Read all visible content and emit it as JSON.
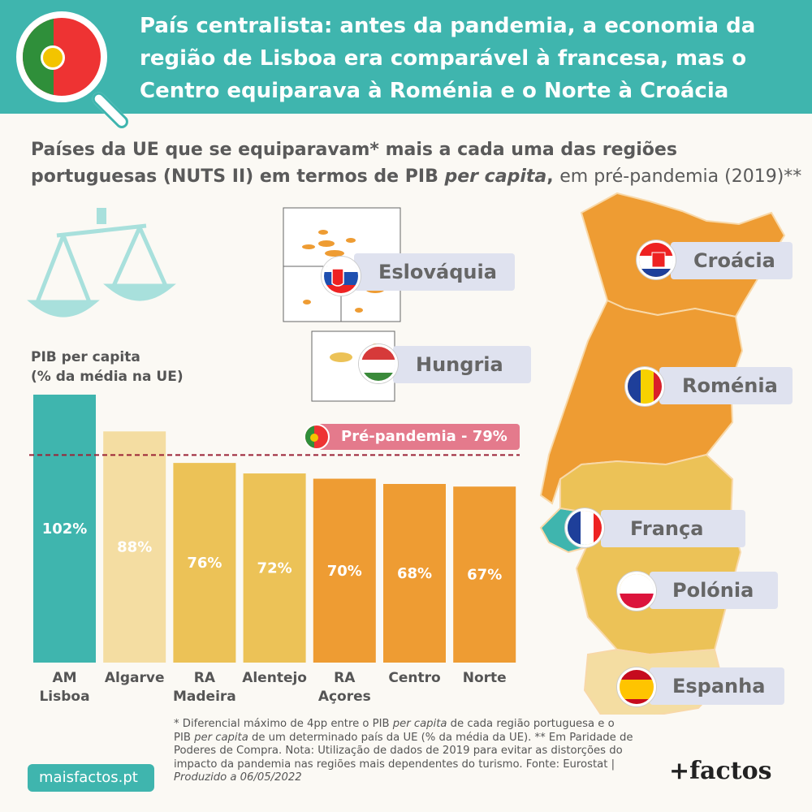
{
  "header": {
    "title": "País centralista: antes da pandemia, a economia da região de Lisboa era comparável à francesa, mas o Centro equiparava à Roménia e o Norte à Croácia"
  },
  "subtitle": {
    "part1": "Países da UE que se equiparavam* mais a cada uma das regiões portuguesas (NUTS II) em termos de PIB ",
    "part_italic": "per capita",
    "part2": ", ",
    "part_light": "em pré-pandemia (2019)**"
  },
  "axis_title": {
    "line1": "PIB per capita",
    "line2": "(% da média na UE)"
  },
  "chart_data": {
    "type": "bar",
    "categories": [
      "AM Lisboa",
      "Algarve",
      "RA Madeira",
      "Alentejo",
      "RA Açores",
      "Centro",
      "Norte"
    ],
    "category_lines": [
      [
        "AM",
        "Lisboa"
      ],
      [
        "Algarve"
      ],
      [
        "RA",
        "Madeira"
      ],
      [
        "Alentejo"
      ],
      [
        "RA",
        "Açores"
      ],
      [
        "Centro"
      ],
      [
        "Norte"
      ]
    ],
    "values": [
      102,
      88,
      76,
      72,
      70,
      68,
      67
    ],
    "value_labels": [
      "102%",
      "88%",
      "76%",
      "72%",
      "70%",
      "68%",
      "67%"
    ],
    "colors": [
      "#3fb5ae",
      "#f4dda2",
      "#ecc257",
      "#ecc257",
      "#ee9c33",
      "#ee9c33",
      "#ee9c33"
    ],
    "reference_line": {
      "value": 79,
      "label": "Pré-pandemia - 79%",
      "color": "#9b2336"
    },
    "ylim": [
      0,
      102
    ]
  },
  "matches": [
    {
      "country": "Eslováquia",
      "flag": "slovakia-flag"
    },
    {
      "country": "Hungria",
      "flag": "hungary-flag"
    },
    {
      "country": "Croácia",
      "flag": "croatia-flag"
    },
    {
      "country": "Roménia",
      "flag": "romania-flag"
    },
    {
      "country": "França",
      "flag": "france-flag"
    },
    {
      "country": "Polónia",
      "flag": "poland-flag"
    },
    {
      "country": "Espanha",
      "flag": "spain-flag"
    }
  ],
  "footnote": {
    "t1": "* Diferencial máximo de 4pp entre o PIB ",
    "i1": "per capita",
    "t2": " de cada região portuguesa e o PIB ",
    "i2": "per capita",
    "t3": " de um determinado país da UE (% da média da UE). ** Em Paridade de Poderes de Compra. Nota: Utilização de dados de 2019 para evitar as distorções do impacto da pandemia nas regiões mais dependentes do turismo. Fonte: Eurostat | ",
    "i3": "Produzido a 06/05/2022"
  },
  "site": "maisfactos.pt",
  "brand": "+factos",
  "colors": {
    "teal": "#3fb5ae",
    "orange": "#ee9c33",
    "yellow": "#ecc257",
    "pale": "#f4dda2",
    "pink": "#e47a8c"
  }
}
